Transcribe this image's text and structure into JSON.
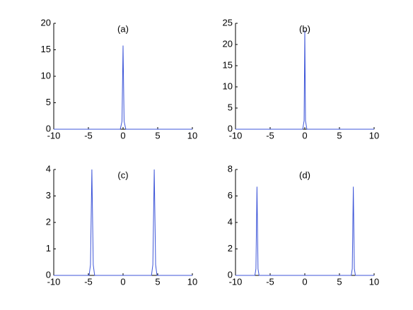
{
  "chart_data": [
    {
      "type": "line",
      "title": "(a)",
      "color": "#3d55d8",
      "x": [
        -10,
        -0.4,
        -0.15,
        0,
        0.15,
        0.4,
        10
      ],
      "values": [
        0,
        0,
        1.5,
        15.8,
        1.5,
        0,
        0
      ],
      "xlim": [
        -10,
        10
      ],
      "xticks": [
        -10,
        -5,
        0,
        5,
        10
      ],
      "ylim": [
        0,
        20
      ],
      "yticks": [
        0,
        5,
        10,
        15,
        20
      ]
    },
    {
      "type": "line",
      "title": "(b)",
      "color": "#3d55d8",
      "x": [
        -10,
        -0.3,
        -0.1,
        0,
        0.1,
        0.3,
        10
      ],
      "values": [
        0,
        0,
        2,
        23.3,
        2,
        0,
        0
      ],
      "xlim": [
        -10,
        10
      ],
      "xticks": [
        -10,
        -5,
        0,
        5,
        10
      ],
      "ylim": [
        0,
        25
      ],
      "yticks": [
        0,
        5,
        10,
        15,
        20,
        25
      ]
    },
    {
      "type": "line",
      "title": "(c)",
      "color": "#3d55d8",
      "x": [
        -10,
        -4.9,
        -4.7,
        -4.5,
        -4.3,
        -4.1,
        4.1,
        4.3,
        4.5,
        4.7,
        4.9,
        10
      ],
      "values": [
        0,
        0,
        0.4,
        4.0,
        0.4,
        0,
        0,
        0.4,
        4.0,
        0.4,
        0,
        0
      ],
      "xlim": [
        -10,
        10
      ],
      "xticks": [
        -10,
        -5,
        0,
        5,
        10
      ],
      "ylim": [
        0,
        4
      ],
      "yticks": [
        0,
        1,
        2,
        3,
        4
      ]
    },
    {
      "type": "line",
      "title": "(d)",
      "color": "#3d55d8",
      "x": [
        -10,
        -7.2,
        -7.05,
        -6.9,
        -6.75,
        -6.6,
        6.7,
        6.85,
        7.0,
        7.15,
        7.3,
        10
      ],
      "values": [
        0,
        0,
        0.5,
        6.7,
        0.5,
        0,
        0,
        0.5,
        6.7,
        0.5,
        0,
        0
      ],
      "xlim": [
        -10,
        10
      ],
      "xticks": [
        -10,
        -5,
        0,
        5,
        10
      ],
      "ylim": [
        0,
        8
      ],
      "yticks": [
        0,
        2,
        4,
        6,
        8
      ]
    }
  ]
}
